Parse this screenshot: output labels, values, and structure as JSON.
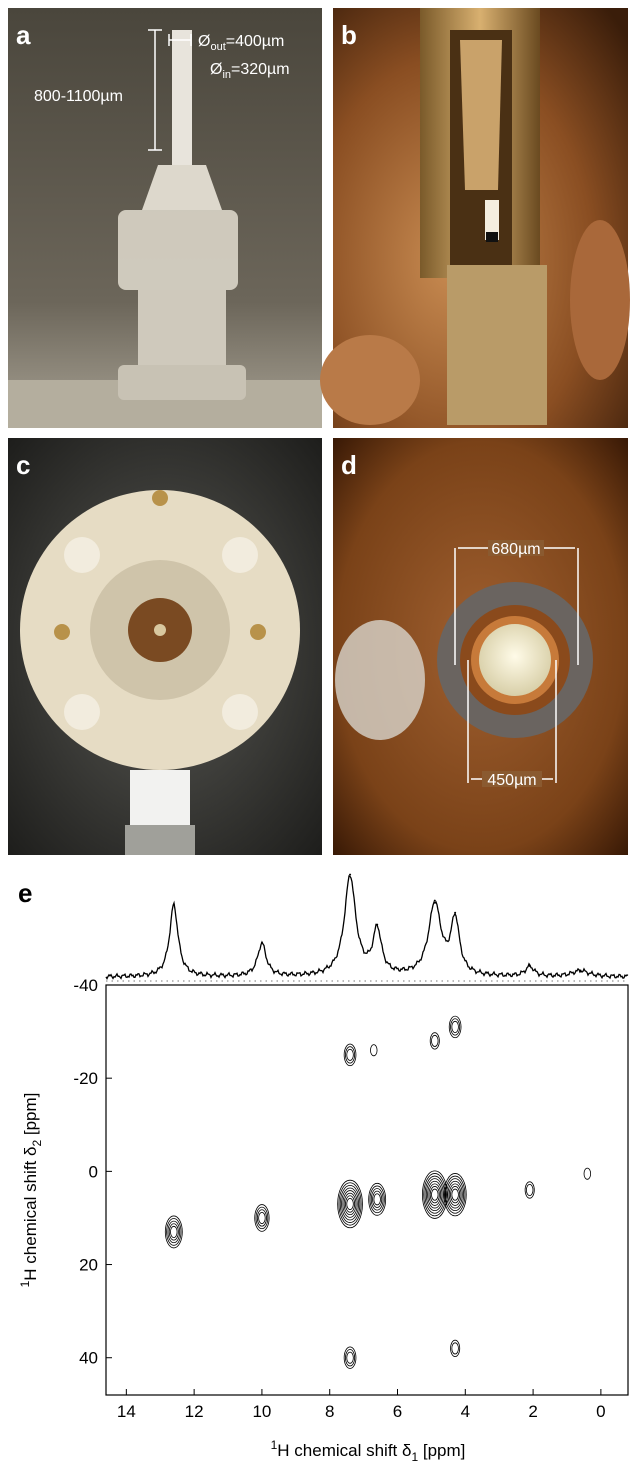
{
  "panels": [
    {
      "label": "a",
      "dimensions": [
        {
          "symbol": "Ø",
          "sub": "out",
          "text": "=400µm"
        },
        {
          "symbol": "Ø",
          "sub": "in",
          "text": "=320µm"
        },
        {
          "text": "800-1100µm"
        }
      ]
    },
    {
      "label": "b"
    },
    {
      "label": "c"
    },
    {
      "label": "d",
      "dimensions": [
        {
          "text": "680µm"
        },
        {
          "text": "450µm"
        }
      ]
    }
  ],
  "chart_data": {
    "type": "contour",
    "label": "e",
    "xlabel": {
      "sup": "1",
      "main": "H chemical shift δ",
      "sub": "1",
      "unit": " [ppm]"
    },
    "ylabel": {
      "sup": "1",
      "main": "H chemical shift δ",
      "sub": "2",
      "unit": " [ppm]"
    },
    "xlim": [
      14.6,
      -0.8
    ],
    "xticks": [
      14,
      12,
      10,
      8,
      6,
      4,
      2,
      0
    ],
    "ylim": [
      -40,
      48
    ],
    "yticks": [
      -40,
      -20,
      0,
      20,
      40
    ],
    "peaks": {
      "x": [
        12.6,
        10.0,
        7.4,
        6.6,
        4.9,
        4.3,
        2.1,
        7.4,
        6.7,
        4.9,
        4.3,
        7.4,
        4.3,
        0.4
      ],
      "y": [
        13,
        10,
        7,
        6,
        5,
        5,
        4,
        -25,
        -26,
        -28,
        -31,
        40,
        38,
        0.5
      ],
      "levels": [
        5,
        4,
        8,
        5,
        8,
        7,
        2,
        3,
        1,
        2,
        3,
        3,
        2,
        1
      ]
    },
    "projection": {
      "positions": [
        12.6,
        10.0,
        7.4,
        6.6,
        4.9,
        4.3,
        2.1,
        0.6
      ],
      "heights": [
        0.72,
        0.33,
        1.0,
        0.45,
        0.72,
        0.55,
        0.1,
        0.06
      ],
      "widths": [
        0.15,
        0.15,
        0.2,
        0.15,
        0.22,
        0.15,
        0.15,
        0.3
      ]
    }
  }
}
